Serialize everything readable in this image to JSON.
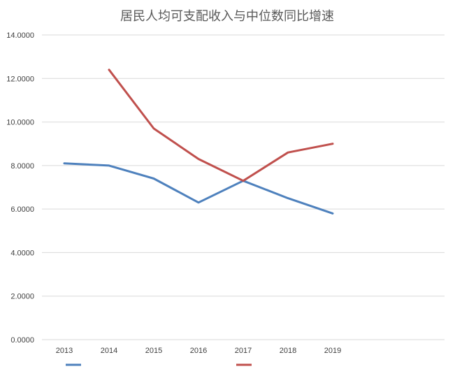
{
  "chart_data": {
    "type": "line",
    "title": "居民人均可支配收入与中位数同比增速",
    "xlabel": "",
    "ylabel": "",
    "categories": [
      "2013",
      "2014",
      "2015",
      "2016",
      "2017",
      "2018",
      "2019"
    ],
    "x_axis_extra_slots": 2,
    "ylim": [
      0,
      14
    ],
    "yticks": [
      "0.0000",
      "2.0000",
      "4.0000",
      "6.0000",
      "8.0000",
      "10.0000",
      "12.0000",
      "14.0000"
    ],
    "grid": true,
    "legend_position": "bottom",
    "series": [
      {
        "name": "",
        "color": "#4e81bd",
        "values": [
          8.1,
          8.0,
          7.4,
          6.3,
          7.3,
          6.5,
          5.8
        ]
      },
      {
        "name": "",
        "color": "#c0504d",
        "values": [
          null,
          12.4,
          9.7,
          8.3,
          7.3,
          8.6,
          9.0
        ]
      }
    ]
  }
}
